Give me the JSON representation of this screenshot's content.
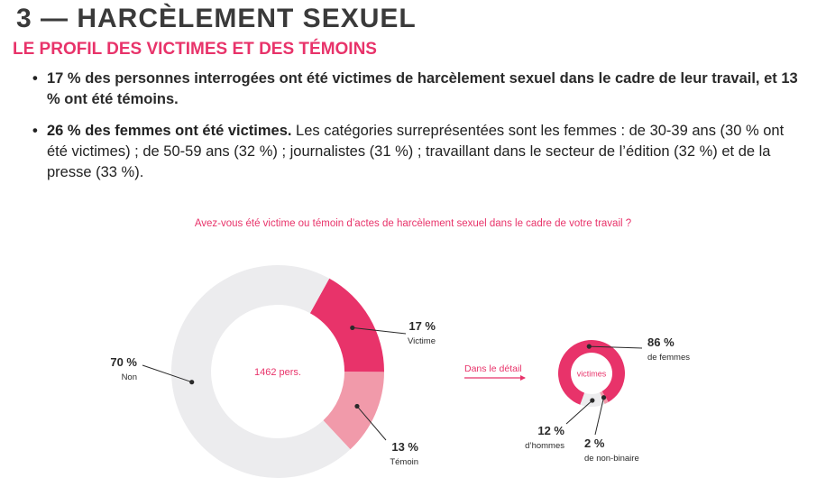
{
  "header": {
    "title": "3 — HARCÈLEMENT SEXUEL",
    "subtitle": "LE PROFIL DES VICTIMES ET DES TÉMOINS"
  },
  "bullets": {
    "b1_text": "17 % des personnes interrogées ont été victimes de harcèlement sexuel dans le cadre de leur travail, et 13 % ont été témoins.",
    "b2_strong": "26 % des femmes ont été victimes.",
    "b2_rest": " Les catégories surreprésentées sont les femmes : de 30-39 ans (30 % ont été victimes) ; de 50-59 ans (32 %) ; journalistes (31 %) ; travaillant dans le secteur de l’édition (32 %) et de la presse (33 %)."
  },
  "question": "Avez-vous été victime ou témoin d’actes de harcèlement sexuel dans le cadre de votre travail ?",
  "detail_label": "Dans le détail",
  "colors": {
    "pink": "#e8336a",
    "light_pink": "#f19aaa",
    "light_gray": "#ececee",
    "text": "#2a2a2a"
  },
  "chart_data": [
    {
      "type": "pie",
      "center_label": "1462 pers.",
      "slices": [
        {
          "label": "Victime",
          "value": 17,
          "value_label": "17 %",
          "color": "#e8336a"
        },
        {
          "label": "Témoin",
          "value": 13,
          "value_label": "13 %",
          "color": "#f19aaa"
        },
        {
          "label": "Non",
          "value": 70,
          "value_label": "70 %",
          "color": "#ececee"
        }
      ]
    },
    {
      "type": "pie",
      "center_label": "victimes",
      "slices": [
        {
          "label": "de femmes",
          "value": 86,
          "value_label": "86 %",
          "color": "#e8336a"
        },
        {
          "label": "de non-binaire",
          "value": 2,
          "value_label": "2 %",
          "color": "#f19aaa"
        },
        {
          "label": "d’hommes",
          "value": 12,
          "value_label": "12 %",
          "color": "#ececee"
        }
      ]
    }
  ]
}
